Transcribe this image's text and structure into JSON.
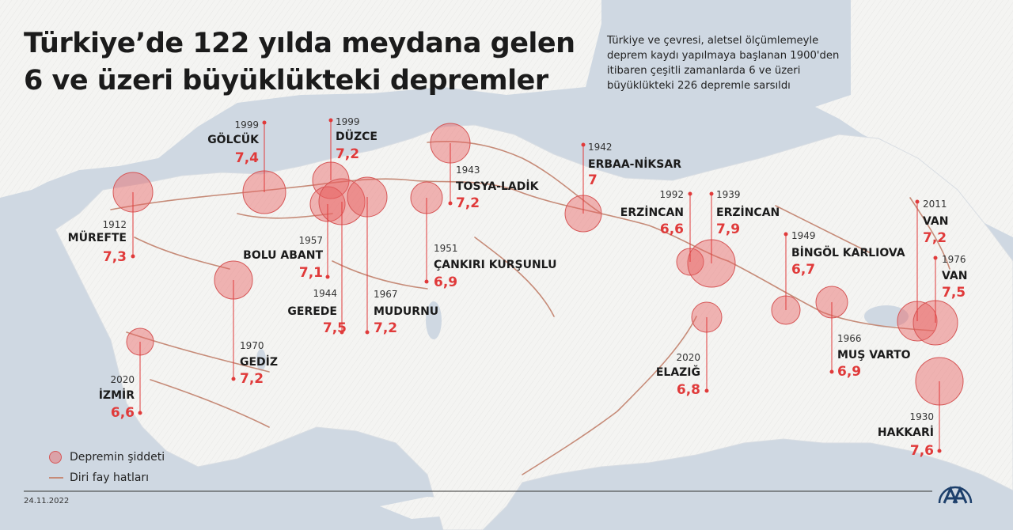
{
  "header": {
    "title_line1": "Türkiye’de 122 yılda meydana gelen",
    "title_line2": "6 ve üzeri büyüklükteki depremler",
    "intro_line1": "Türkiye ve çevresi, aletsel ölçümlemeyle",
    "intro_line2": "deprem kaydı yapılmaya başlanan 1900'den",
    "intro_line3": "itibaren çeşitli zamanlarda 6 ve üzeri",
    "intro_line4": "büyüklükteki 226 depremle sarsıldı"
  },
  "legend": {
    "intensity_label": "Depremin şiddeti",
    "fault_label": "Diri fay hatları"
  },
  "footer": {
    "date": "24.11.2022",
    "logo_icon": "aa-logo-icon"
  },
  "colors": {
    "accent": "#e03a3a",
    "circle_fill": "#e96161",
    "fault": "#c68b78",
    "land": "#f4f4f2",
    "sea": "#cfd8e2"
  },
  "earthquakes": [
    {
      "id": "golcuk",
      "year": "1999",
      "place": "GÖLCÜK",
      "mag": "7,4"
    },
    {
      "id": "duzce",
      "year": "1999",
      "place": "DÜZCE",
      "mag": "7,2"
    },
    {
      "id": "murefte",
      "year": "1912",
      "place": "MÜREFTE",
      "mag": "7,3"
    },
    {
      "id": "bolu",
      "year": "1957",
      "place": "BOLU ABANT",
      "mag": "7,1"
    },
    {
      "id": "gerede",
      "year": "1944",
      "place": "GEREDE",
      "mag": "7,5"
    },
    {
      "id": "mudurnu",
      "year": "1967",
      "place": "MUDURNU",
      "mag": "7,2"
    },
    {
      "id": "tosya",
      "year": "1943",
      "place": "TOSYA-LADİK",
      "mag": "7,2"
    },
    {
      "id": "cankiri",
      "year": "1951",
      "place": "ÇANKIRI KURŞUNLU",
      "mag": "6,9"
    },
    {
      "id": "erbaa",
      "year": "1942",
      "place": "ERBAA-NİKSAR",
      "mag": "7"
    },
    {
      "id": "erzincan92",
      "year": "1992",
      "place": "ERZİNCAN",
      "mag": "6,6"
    },
    {
      "id": "erzincan39",
      "year": "1939",
      "place": "ERZİNCAN",
      "mag": "7,9"
    },
    {
      "id": "bingol",
      "year": "1949",
      "place": "BİNGÖL KARLIOVA",
      "mag": "6,7"
    },
    {
      "id": "van11",
      "year": "2011",
      "place": "VAN",
      "mag": "7,2"
    },
    {
      "id": "van76",
      "year": "1976",
      "place": "VAN",
      "mag": "7,5"
    },
    {
      "id": "gediz",
      "year": "1970",
      "place": "GEDİZ",
      "mag": "7,2"
    },
    {
      "id": "izmir",
      "year": "2020",
      "place": "İZMİR",
      "mag": "6,6"
    },
    {
      "id": "elazig",
      "year": "2020",
      "place": "ELAZIĞ",
      "mag": "6,8"
    },
    {
      "id": "mus",
      "year": "1966",
      "place": "MUŞ VARTO",
      "mag": "6,9"
    },
    {
      "id": "hakkari",
      "year": "1930",
      "place": "HAKKARİ",
      "mag": "7,6"
    }
  ]
}
